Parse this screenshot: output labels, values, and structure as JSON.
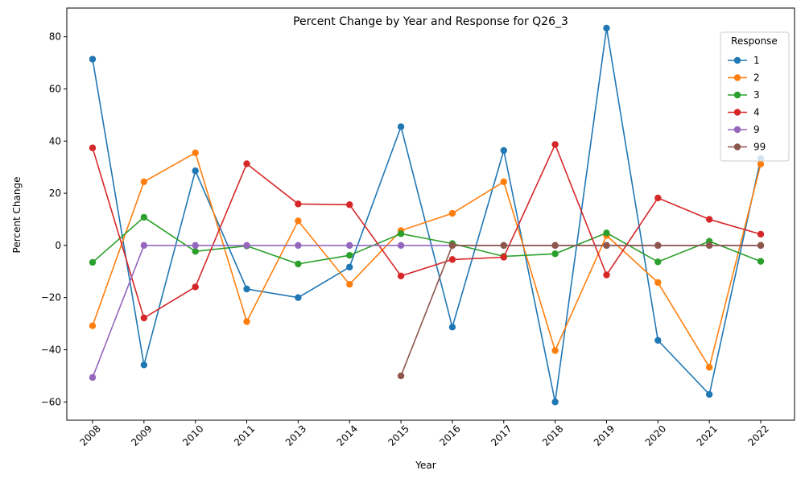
{
  "chart_data": {
    "type": "line",
    "title": "Percent Change by Year and Response for Q26_3",
    "xlabel": "Year",
    "ylabel": "Percent Change",
    "categories": [
      "2008",
      "2009",
      "2010",
      "2011",
      "2013",
      "2014",
      "2015",
      "2016",
      "2017",
      "2018",
      "2019",
      "2020",
      "2021",
      "2022"
    ],
    "ylim": [
      -67,
      91
    ],
    "yticks": [
      -60,
      -40,
      -20,
      0,
      20,
      40,
      60,
      80
    ],
    "grid": false,
    "legend": {
      "title": "Response",
      "placement": "top-right"
    },
    "series": [
      {
        "name": "1",
        "color": "#1f77b4",
        "values": [
          71.4,
          -45.8,
          28.6,
          -16.7,
          -20.0,
          -8.3,
          45.5,
          -31.3,
          36.4,
          -60.0,
          83.3,
          -36.4,
          -57.1,
          33.3
        ]
      },
      {
        "name": "2",
        "color": "#ff7f0e",
        "values": [
          -30.8,
          24.4,
          35.5,
          -29.2,
          9.4,
          -14.9,
          5.7,
          12.3,
          24.4,
          -40.3,
          3.8,
          -14.2,
          -46.7,
          31.2
        ]
      },
      {
        "name": "3",
        "color": "#2ca02c",
        "values": [
          -6.5,
          10.8,
          -2.3,
          -0.2,
          -7.1,
          -3.8,
          4.5,
          0.7,
          -4.2,
          -3.2,
          4.8,
          -6.3,
          1.6,
          -6.1
        ]
      },
      {
        "name": "4",
        "color": "#d62728",
        "values": [
          37.4,
          -27.8,
          -15.9,
          31.3,
          15.9,
          15.6,
          -11.7,
          -5.4,
          -4.5,
          38.7,
          -11.3,
          18.2,
          10.0,
          4.3
        ]
      },
      {
        "name": "9",
        "color": "#9467bd",
        "values": [
          -50.6,
          0,
          0,
          0,
          0,
          0,
          0,
          0,
          0,
          0,
          0,
          0,
          0,
          0
        ]
      },
      {
        "name": "99",
        "color": "#8c564b",
        "values": [
          null,
          null,
          null,
          null,
          null,
          null,
          -50.0,
          0,
          0,
          0,
          0,
          0,
          0,
          0
        ]
      }
    ]
  }
}
